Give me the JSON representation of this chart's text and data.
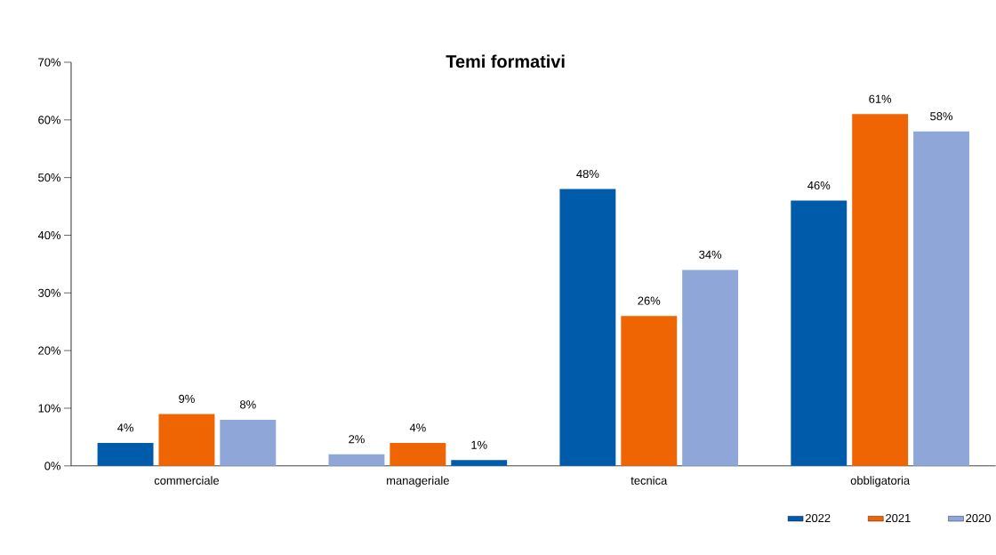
{
  "chart_data": {
    "type": "bar",
    "title": "Temi formativi",
    "categories": [
      "commerciale",
      "manageriale",
      "tecnica",
      "obbligatoria"
    ],
    "series": [
      {
        "name": "2022",
        "color": "#005baa",
        "colors": [
          "#005baa",
          "#8fa7d8",
          "#005baa",
          "#005baa"
        ],
        "values": [
          4,
          2,
          48,
          46
        ],
        "value_labels": [
          "4%",
          "2%",
          "48%",
          "46%"
        ]
      },
      {
        "name": "2021",
        "color": "#ef6503",
        "values": [
          9,
          4,
          26,
          61
        ],
        "value_labels": [
          "9%",
          "4%",
          "26%",
          "61%"
        ]
      },
      {
        "name": "2020",
        "color": "#8fa7d8",
        "colors": [
          "#8fa7d8",
          "#005baa",
          "#8fa7d8",
          "#8fa7d8"
        ],
        "values": [
          8,
          1,
          34,
          58
        ],
        "value_labels": [
          "8%",
          "1%",
          "34%",
          "58%"
        ]
      }
    ],
    "ylim": [
      0,
      70
    ],
    "yticks": [
      {
        "value": 0,
        "label": "0%"
      },
      {
        "value": 10,
        "label": "10%"
      },
      {
        "value": 20,
        "label": "20%"
      },
      {
        "value": 30,
        "label": "30%"
      },
      {
        "value": 40,
        "label": "40%"
      },
      {
        "value": 50,
        "label": "50%"
      },
      {
        "value": 60,
        "label": "60%"
      },
      {
        "value": 70,
        "label": "70%"
      }
    ],
    "grid": false,
    "legend": "bottom right"
  }
}
